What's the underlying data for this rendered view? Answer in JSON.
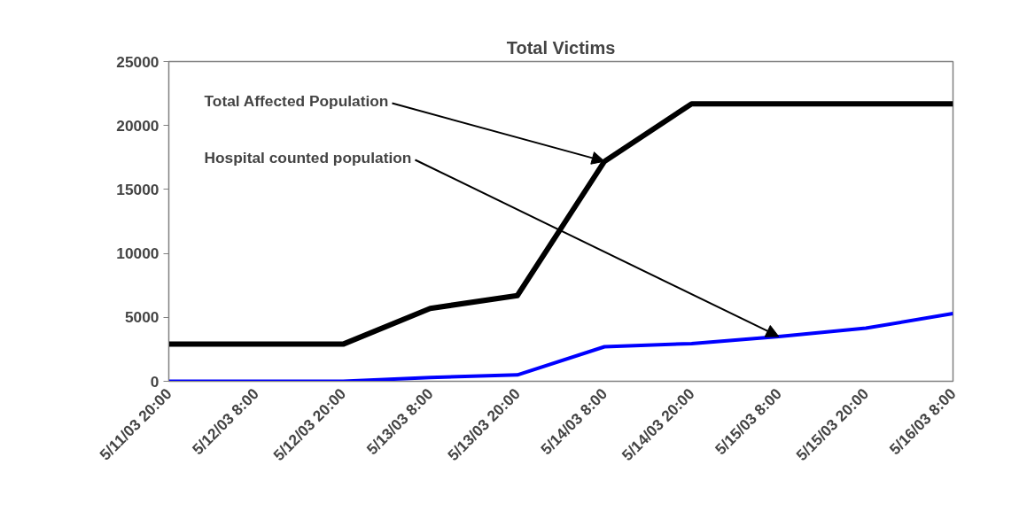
{
  "chart_data": {
    "type": "line",
    "title": "Total Victims",
    "categories": [
      "5/11/03 20:00",
      "5/12/03 8:00",
      "5/12/03 20:00",
      "5/13/03 8:00",
      "5/13/03 20:00",
      "5/14/03 8:00",
      "5/14/03 20:00",
      "5/15/03 8:00",
      "5/15/03 20:00",
      "5/16/03 8:00"
    ],
    "series": [
      {
        "color": "#000000",
        "values": [
          2900,
          2900,
          2900,
          5700,
          6700,
          17200,
          21700,
          21700,
          21700,
          21700
        ]
      },
      {
        "color": "#0000ff",
        "values": [
          0,
          0,
          0,
          300,
          500,
          2700,
          2950,
          3500,
          4150,
          5300
        ]
      }
    ],
    "ylim": [
      0,
      25000
    ],
    "yticks": [
      0,
      5000,
      10000,
      15000,
      20000,
      25000
    ],
    "grid": false,
    "marker": "none",
    "line_style": "solid",
    "annotations": [
      {
        "text": "Total Affected Population",
        "x": "5/14/03 8:00",
        "y": 17200
      },
      {
        "text": "Hospital counted population",
        "x": "5/15/03 8:00",
        "y": 3500
      }
    ]
  }
}
